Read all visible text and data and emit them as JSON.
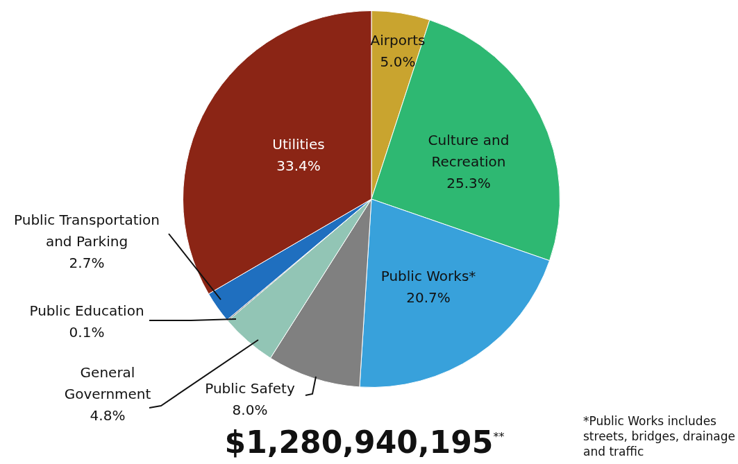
{
  "chart_data": {
    "type": "pie",
    "categories": [
      "Airports",
      "Culture and Recreation",
      "Public Works*",
      "Public Safety",
      "General Government",
      "Public Education",
      "Public Transportation and Parking",
      "Utilities"
    ],
    "values": [
      5.0,
      25.3,
      20.7,
      8.0,
      4.8,
      0.1,
      2.7,
      33.4
    ],
    "value_labels": [
      "5.0%",
      "25.3%",
      "20.7%",
      "8.0%",
      "4.8%",
      "0.1%",
      "2.7%",
      "33.4%"
    ],
    "colors": [
      "#c9a42f",
      "#2eb872",
      "#38a1db",
      "#808080",
      "#92c5b5",
      "#6b6b6b",
      "#1f6fbf",
      "#8b2515"
    ],
    "legend": false,
    "annotations": [
      "$1,280,940,195$^{**}$",
      "*Public Works includes streets, bridges, drainage and traffic"
    ]
  }
}
